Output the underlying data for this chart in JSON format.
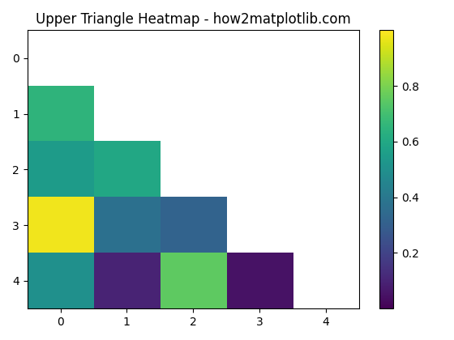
{
  "title": "Upper Triangle Heatmap - how2matplotlib.com",
  "cmap": "viridis",
  "n": 5,
  "matrix": [
    [
      null,
      null,
      null,
      null,
      null
    ],
    [
      0.65,
      null,
      null,
      null,
      null
    ],
    [
      0.55,
      0.6,
      null,
      null,
      null
    ],
    [
      0.98,
      0.37,
      0.32,
      null,
      null
    ],
    [
      0.5,
      0.1,
      0.75,
      0.05,
      null
    ]
  ],
  "vmin": 0.0,
  "vmax": 1.0,
  "figsize": [
    5.6,
    4.2
  ],
  "dpi": 100,
  "colorbar_ticks": [
    0.2,
    0.4,
    0.6,
    0.8
  ]
}
